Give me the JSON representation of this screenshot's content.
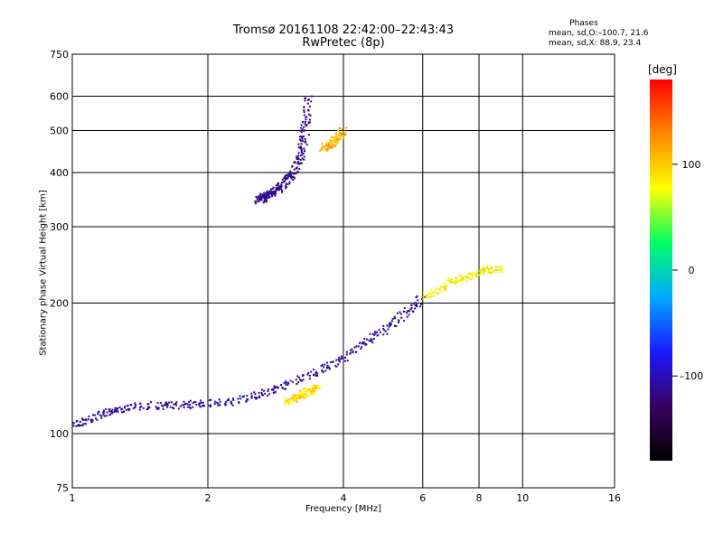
{
  "title": "Tromsø 20161108 22:42:00–22:43:43",
  "subtitle": "RwPretec (8p)",
  "phases": {
    "title": "Phases",
    "line_o": "mean, sd,O:–100.7, 21.6",
    "line_x": "mean, sd,X:  88.9, 23.4"
  },
  "colorbar": {
    "unit": "[deg]",
    "ticks": [
      "100",
      "0",
      "–100"
    ],
    "tick_values": [
      100,
      0,
      -100
    ],
    "range": [
      -180,
      180
    ],
    "colormap": [
      "#000000",
      "#3a0060",
      "#1a1aff",
      "#00aaff",
      "#00ff66",
      "#ffff00",
      "#ff8800",
      "#ff0000"
    ]
  },
  "chart_data": {
    "type": "scatter",
    "xlabel": "Frequency [MHz]",
    "ylabel": "Stationary phase Virtual Height [km]",
    "xscale": "log",
    "yscale": "log",
    "xlim": [
      1,
      16
    ],
    "ylim": [
      75,
      750
    ],
    "xticks": [
      1,
      2,
      4,
      6,
      8,
      10,
      16
    ],
    "xtick_labels": [
      "1",
      "2",
      "4",
      "6",
      "8",
      "10",
      "16"
    ],
    "yticks": [
      75,
      100,
      200,
      300,
      400,
      500,
      600,
      750
    ],
    "ytick_labels": [
      "75",
      "100",
      "200",
      "300",
      "400",
      "500",
      "600",
      "750"
    ],
    "grid": true,
    "color_variable": "phase [deg]",
    "traces": [
      {
        "id": "E-region",
        "x": [
          1.0,
          1.1,
          1.2,
          1.3,
          1.5,
          1.7,
          1.9,
          2.2,
          2.5,
          2.8,
          3.2,
          3.6,
          4.0,
          4.5,
          5.0,
          5.5,
          6.0
        ],
        "y": [
          105,
          108,
          112,
          115,
          116,
          116,
          117,
          118,
          122,
          126,
          133,
          140,
          150,
          163,
          175,
          190,
          205
        ],
        "phase": -110
      },
      {
        "id": "O-mode-F",
        "x": [
          2.6,
          2.65,
          2.7,
          2.8,
          2.9,
          3.0,
          3.1,
          3.2,
          3.25,
          3.3,
          3.35
        ],
        "y": [
          345,
          350,
          355,
          360,
          370,
          385,
          400,
          430,
          470,
          520,
          600
        ],
        "phase": -115
      },
      {
        "id": "X-mode-F",
        "x": [
          3.6,
          3.7,
          3.8,
          3.9,
          4.0
        ],
        "y": [
          455,
          460,
          470,
          485,
          500
        ],
        "phase": 110
      },
      {
        "id": "F-extension",
        "x": [
          6.0,
          6.5,
          7.0,
          7.5,
          8.0,
          8.5,
          9.0
        ],
        "y": [
          205,
          215,
          225,
          230,
          235,
          240,
          240
        ],
        "phase": 80
      },
      {
        "id": "X-mode-lower",
        "x": [
          3.0,
          3.1,
          3.2,
          3.3,
          3.4,
          3.5
        ],
        "y": [
          118,
          120,
          122,
          124,
          126,
          128
        ],
        "phase": 95
      }
    ]
  }
}
